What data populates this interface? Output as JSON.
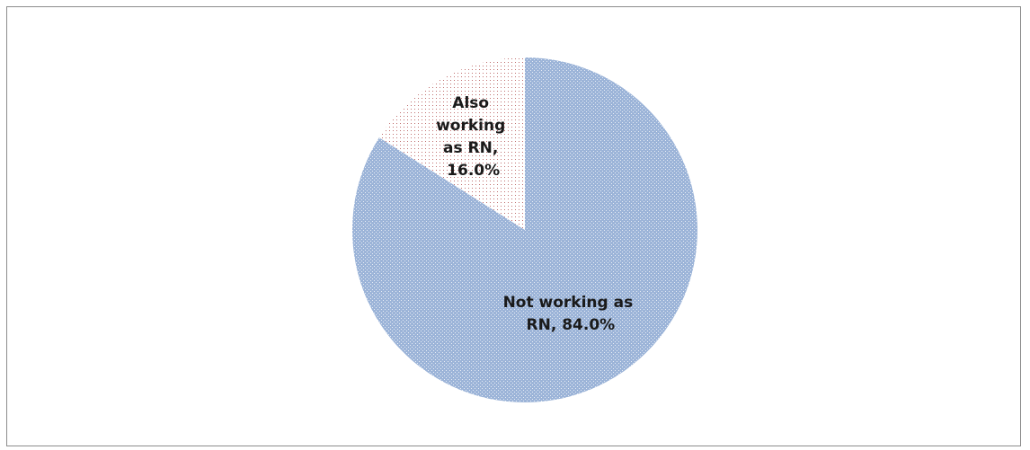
{
  "chart_data": {
    "type": "pie",
    "title": "",
    "slices": [
      {
        "label_lines": [
          "Not working as",
          "RN, 84.0%"
        ],
        "category": "Not working as RN",
        "value": 84.0,
        "color": "#9cb4d8",
        "pattern": "fine-grid"
      },
      {
        "label_lines": [
          "Also",
          "working",
          "as RN,",
          "16.0%"
        ],
        "category": "Also working as RN",
        "value": 16.0,
        "color": "#f6f1f1",
        "pattern": "dots"
      }
    ],
    "start_angle_deg": 0,
    "direction": "clockwise",
    "legend": "none",
    "labels": "inside"
  }
}
